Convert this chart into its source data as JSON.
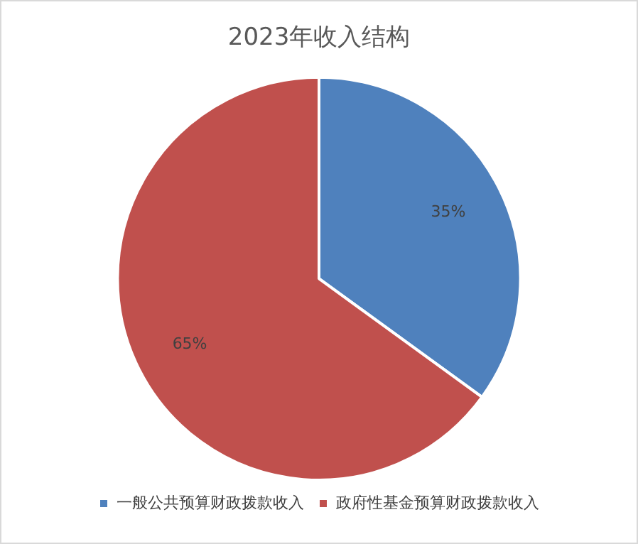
{
  "chart_data": {
    "type": "pie",
    "title": "2023年收入结构",
    "categories": [
      "一般公共预算财政拨款收入",
      "政府性基金预算财政拨款收入"
    ],
    "values": [
      35,
      65
    ],
    "colors": [
      "#4f81bd",
      "#c0504d"
    ],
    "value_labels": [
      "35%",
      "65%"
    ],
    "legend": "bottom"
  }
}
